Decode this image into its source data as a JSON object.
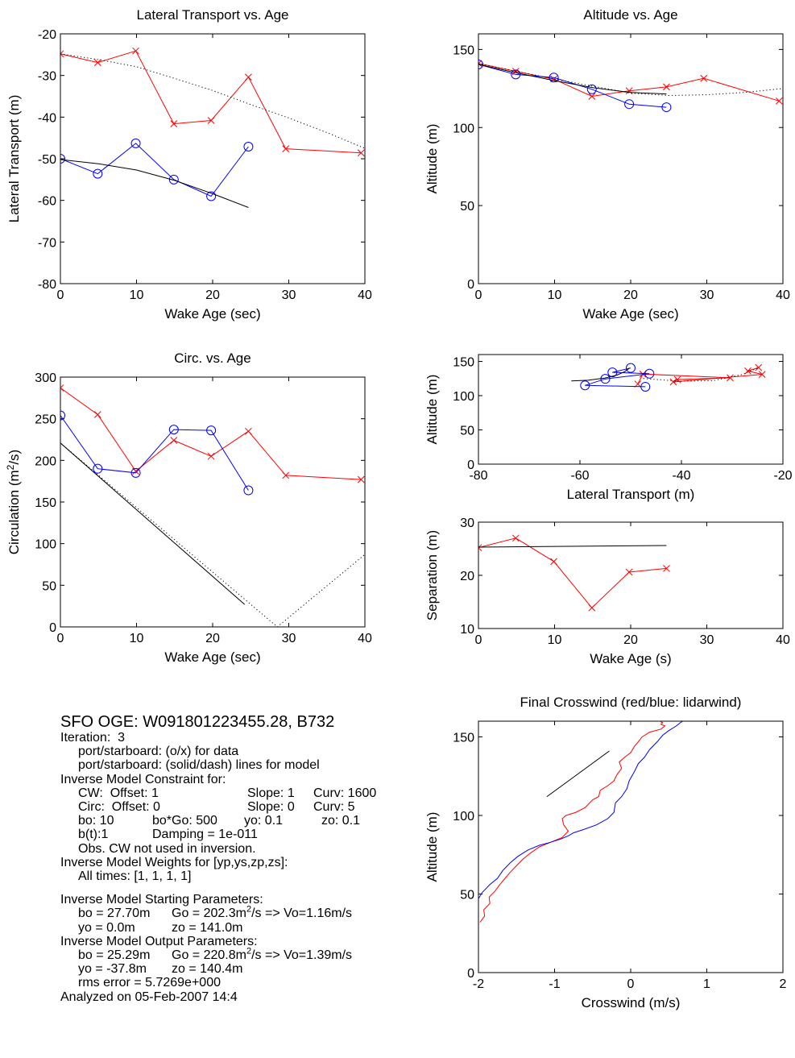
{
  "chart_data": [
    {
      "id": "lateral",
      "type": "line",
      "title": "Lateral Transport vs. Age",
      "xlabel": "Wake Age (sec)",
      "ylabel": "Lateral Transport (m)",
      "xlim": [
        0,
        40
      ],
      "ylim": [
        -80,
        -20
      ],
      "xticks": [
        0,
        10,
        20,
        30,
        40
      ],
      "yticks": [
        -80,
        -70,
        -60,
        -50,
        -40,
        -30,
        -20
      ],
      "xtick_labels": [
        "0",
        "10",
        "20",
        "30",
        "40"
      ],
      "ytick_labels": [
        "-80",
        "-70",
        "-60",
        "-50",
        "-40",
        "-30",
        "-20"
      ],
      "series": [
        {
          "color": "#ff0000",
          "style": "solid",
          "marker": "x",
          "x": [
            0,
            4.9,
            9.9,
            14.9,
            19.8,
            24.7,
            29.6,
            39.5
          ],
          "y": [
            -24.8,
            -26.9,
            -24.1,
            -41.6,
            -40.8,
            -30.4,
            -47.6,
            -48.6
          ]
        },
        {
          "color": "#0000ff",
          "style": "solid",
          "marker": "o",
          "x": [
            0,
            4.9,
            9.9,
            14.9,
            19.8,
            24.7
          ],
          "y": [
            -50.0,
            -53.6,
            -46.3,
            -55.0,
            -59.0,
            -47.1
          ]
        },
        {
          "color": "#000000",
          "style": "solid",
          "marker": "none",
          "x": [
            0,
            5,
            10,
            15,
            20,
            24.7
          ],
          "y": [
            -50.2,
            -51.2,
            -52.7,
            -55.2,
            -58.4,
            -61.7
          ]
        },
        {
          "color": "#000000",
          "style": "dotted",
          "marker": "none",
          "x": [
            0,
            5,
            10,
            15,
            20,
            25,
            30,
            35,
            40
          ],
          "y": [
            -24.8,
            -26.2,
            -27.9,
            -30.7,
            -33.6,
            -37.0,
            -40.2,
            -43.7,
            -47.5
          ]
        }
      ]
    },
    {
      "id": "altitude",
      "type": "line",
      "title": "Altitude vs. Age",
      "xlabel": "Wake Age (sec)",
      "ylabel": "Altitude (m)",
      "xlim": [
        0,
        40
      ],
      "ylim": [
        0,
        160
      ],
      "xticks": [
        0,
        10,
        20,
        30,
        40
      ],
      "yticks": [
        0,
        50,
        100,
        150
      ],
      "xtick_labels": [
        "0",
        "10",
        "20",
        "30",
        "40"
      ],
      "ytick_labels": [
        "0",
        "50",
        "100",
        "150"
      ],
      "series": [
        {
          "color": "#ff0000",
          "style": "solid",
          "marker": "x",
          "x": [
            0,
            4.9,
            9.9,
            14.9,
            19.8,
            24.7,
            29.6,
            39.5
          ],
          "y": [
            141,
            136,
            131,
            120,
            123.5,
            126,
            131.5,
            117
          ]
        },
        {
          "color": "#0000ff",
          "style": "solid",
          "marker": "o",
          "x": [
            0,
            4.9,
            9.9,
            14.9,
            19.8,
            24.7
          ],
          "y": [
            140.4,
            134,
            132,
            124.5,
            115,
            113
          ]
        },
        {
          "color": "#000000",
          "style": "solid",
          "marker": "none",
          "x": [
            0,
            5,
            10,
            15,
            20,
            24.7
          ],
          "y": [
            140.4,
            135,
            130,
            125.5,
            122.5,
            121.5
          ]
        },
        {
          "color": "#000000",
          "style": "dotted",
          "marker": "none",
          "x": [
            0,
            10,
            20,
            25,
            30,
            35,
            40
          ],
          "y": [
            141,
            131,
            122,
            120.5,
            121,
            122.5,
            125
          ]
        }
      ]
    },
    {
      "id": "circ",
      "type": "line",
      "title": "Circ. vs. Age",
      "xlabel": "Wake Age (sec)",
      "ylabel": "Circulation (m²/s)",
      "xlim": [
        0,
        40
      ],
      "ylim": [
        0,
        300
      ],
      "xticks": [
        0,
        10,
        20,
        30,
        40
      ],
      "yticks": [
        0,
        50,
        100,
        150,
        200,
        250,
        300
      ],
      "xtick_labels": [
        "0",
        "10",
        "20",
        "30",
        "40"
      ],
      "ytick_labels": [
        "0",
        "50",
        "100",
        "150",
        "200",
        "250",
        "300"
      ],
      "series": [
        {
          "color": "#ff0000",
          "style": "solid",
          "marker": "x",
          "x": [
            0,
            4.9,
            9.9,
            14.9,
            19.8,
            24.7,
            29.6,
            39.5
          ],
          "y": [
            287,
            255,
            187,
            224,
            205,
            235,
            182,
            177
          ]
        },
        {
          "color": "#0000ff",
          "style": "solid",
          "marker": "o",
          "x": [
            0,
            4.9,
            9.9,
            14.9,
            19.8,
            24.7
          ],
          "y": [
            254,
            190,
            185,
            237,
            236,
            164
          ]
        },
        {
          "color": "#000000",
          "style": "solid",
          "marker": "none",
          "x": [
            0,
            24.2
          ],
          "y": [
            220.8,
            27
          ]
        },
        {
          "color": "#000000",
          "style": "dotted",
          "marker": "none",
          "x": [
            0,
            28.5,
            40
          ],
          "y": [
            220.8,
            0,
            87
          ]
        }
      ]
    },
    {
      "id": "alt_lat",
      "type": "line",
      "title": "",
      "xlabel": "Lateral Transport (m)",
      "ylabel": "Altitude (m)",
      "xlim": [
        -80,
        -20
      ],
      "ylim": [
        0,
        160
      ],
      "xticks": [
        -80,
        -60,
        -40,
        -20
      ],
      "yticks": [
        0,
        50,
        100,
        150
      ],
      "xtick_labels": [
        "-80",
        "-60",
        "-40",
        "-20"
      ],
      "ytick_labels": [
        "0",
        "50",
        "100",
        "150"
      ],
      "series": [
        {
          "color": "#ff0000",
          "style": "solid",
          "marker": "x",
          "x": [
            -24.8,
            -26.9,
            -24.1,
            -41.6,
            -40.8,
            -30.4,
            -47.6,
            -48.6
          ],
          "y": [
            141,
            136,
            131,
            120,
            123.5,
            126,
            131.5,
            117
          ]
        },
        {
          "color": "#0000ff",
          "style": "solid",
          "marker": "o",
          "x": [
            -50.0,
            -53.6,
            -46.3,
            -55.0,
            -59.0,
            -47.1
          ],
          "y": [
            140.4,
            134,
            132,
            124.5,
            115,
            113
          ]
        },
        {
          "color": "#000000",
          "style": "solid",
          "marker": "none",
          "x": [
            -61.7,
            -58.4,
            -55.2,
            -52.7,
            -51.2,
            -50.2
          ],
          "y": [
            121.5,
            122.5,
            125.5,
            130,
            135,
            140.4
          ]
        },
        {
          "color": "#000000",
          "style": "dotted",
          "marker": "none",
          "x": [
            -47.5,
            -40.2,
            -33.6,
            -27.9,
            -24.8
          ],
          "y": [
            125,
            121,
            122,
            131,
            141
          ]
        }
      ]
    },
    {
      "id": "separation",
      "type": "line",
      "title": "",
      "xlabel": "Wake Age (s)",
      "ylabel": "Separation (m)",
      "xlim": [
        0,
        40
      ],
      "ylim": [
        10,
        30
      ],
      "xticks": [
        0,
        10,
        20,
        30,
        40
      ],
      "yticks": [
        10,
        20,
        30
      ],
      "xtick_labels": [
        "0",
        "10",
        "20",
        "30",
        "40"
      ],
      "ytick_labels": [
        "10",
        "20",
        "30"
      ],
      "series": [
        {
          "color": "#ff0000",
          "style": "solid",
          "marker": "x",
          "x": [
            0,
            4.9,
            9.9,
            14.9,
            19.8,
            24.7
          ],
          "y": [
            25.2,
            27.0,
            22.6,
            13.9,
            20.6,
            21.3
          ]
        },
        {
          "color": "#000000",
          "style": "solid",
          "marker": "none",
          "x": [
            0,
            24.7
          ],
          "y": [
            25.3,
            25.6
          ]
        }
      ]
    },
    {
      "id": "crosswind",
      "type": "line",
      "title": "Final Crosswind (red/blue: lidarwind)",
      "xlabel": "Crosswind (m/s)",
      "ylabel": "Altitude (m)",
      "xlim": [
        -2,
        2
      ],
      "ylim": [
        0,
        160
      ],
      "xticks": [
        -2,
        -1,
        0,
        1,
        2
      ],
      "yticks": [
        0,
        50,
        100,
        150
      ],
      "xtick_labels": [
        "-2",
        "-1",
        "0",
        "1",
        "2"
      ],
      "ytick_labels": [
        "0",
        "50",
        "100",
        "150"
      ],
      "series": [
        {
          "color": "#ff0000",
          "style": "solid",
          "marker": "none",
          "x": [
            -1.98,
            -1.92,
            -1.93,
            -1.85,
            -1.86,
            -1.78,
            -1.72,
            -1.65,
            -1.58,
            -1.5,
            -1.42,
            -1.32,
            -1.2,
            -1.05,
            -0.9,
            -0.82,
            -0.88,
            -0.9,
            -0.85,
            -0.72,
            -0.6,
            -0.5,
            -0.42,
            -0.4,
            -0.3,
            -0.22,
            -0.18,
            -0.12,
            -0.15,
            -0.08,
            0.0,
            0.05,
            0.1,
            0.15,
            0.25,
            0.4,
            0.45,
            0.4,
            0.42,
            0.38,
            0.35
          ],
          "y": [
            32,
            36,
            40,
            44,
            48,
            52,
            56,
            60,
            64,
            68,
            72,
            76,
            80,
            83,
            86,
            90,
            94,
            98,
            100,
            102,
            105,
            110,
            112,
            116,
            119,
            122,
            126,
            130,
            134,
            137,
            140,
            144,
            147,
            150,
            153,
            155,
            157,
            158,
            159,
            160,
            161
          ]
        },
        {
          "color": "#0000ff",
          "style": "solid",
          "marker": "none",
          "x": [
            -2.0,
            -1.95,
            -1.85,
            -1.75,
            -1.68,
            -1.58,
            -1.48,
            -1.35,
            -1.2,
            -1.05,
            -0.92,
            -0.82,
            -0.75,
            -0.62,
            -0.45,
            -0.3,
            -0.22,
            -0.2,
            -0.12,
            -0.05,
            -0.02,
            0.05,
            0.1,
            0.18,
            0.25,
            0.35,
            0.42,
            0.5,
            0.6,
            0.65,
            0.72
          ],
          "y": [
            47,
            51,
            56,
            60,
            65,
            70,
            74,
            78,
            81,
            83,
            85,
            87,
            89,
            91,
            94,
            98,
            102,
            108,
            112,
            117,
            122,
            128,
            133,
            137,
            142,
            147,
            151,
            154,
            157,
            159,
            161
          ]
        },
        {
          "color": "#000000",
          "style": "solid",
          "marker": "none",
          "x": [
            -1.1,
            -0.28
          ],
          "y": [
            112,
            141
          ]
        }
      ]
    }
  ],
  "info": {
    "title": "SFO OGE: W091801223455.28, B732",
    "iteration": "Iteration:  3",
    "port_data": "port/starboard: (o/x) for data",
    "port_model": "port/starboard: (solid/dash) lines for model",
    "constraint_hdr": "Inverse Model Constraint for:",
    "cw_a": "CW:  Offset: 1",
    "cw_b": "Slope: 1",
    "cw_c": "Curv: 1600",
    "circ_a": "Circ:  Offset: 0",
    "circ_b": "Slope: 0",
    "circ_c": "Curv: 5",
    "bo_a": "bo: 10",
    "bo_b": "bo*Go: 500",
    "bo_c": "yo: 0.1",
    "bo_d": "zo: 0.1",
    "bt_a": "b(t):1",
    "bt_b": "Damping = 1e-011",
    "obs": "Obs. CW not used in inversion.",
    "weights_hdr": "Inverse Model Weights for [yp,ys,zp,zs]:",
    "weights": "All times: [1, 1, 1, 1]",
    "start_hdr": "Inverse Model Starting Parameters:",
    "start_bo": "bo = 27.70m",
    "start_go_a": "Go = 202.3m",
    "start_go_sup": "2",
    "start_go_b": "/s => Vo=1.16m/s",
    "start_yo": "yo = 0.0m",
    "start_zo": "zo = 141.0m",
    "out_hdr": "Inverse Model Output Parameters:",
    "out_bo": "bo = 25.29m",
    "out_go_a": "Go = 220.8m",
    "out_go_sup": "2",
    "out_go_b": "/s => Vo=1.39m/s",
    "out_yo": "yo = -37.8m",
    "out_zo": "zo = 140.4m",
    "rms": "rms error = 5.7269e+000",
    "analyzed": "Analyzed on 05-Feb-2007 14:4"
  }
}
